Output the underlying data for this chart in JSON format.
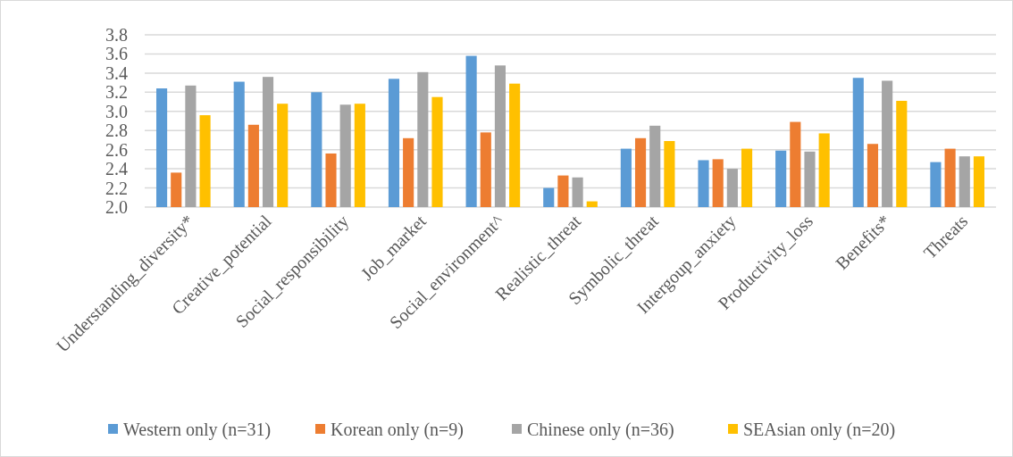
{
  "chart_data": {
    "type": "bar",
    "categories": [
      "Understanding_diversity*",
      "Creative_potential",
      "Social_responsibility",
      "Job_market",
      "Social_environment^",
      "Realistic_threat",
      "Symbolic_threat",
      "Intergoup_anxiety",
      "Productivity_loss",
      "Benefits*",
      "Threats"
    ],
    "series": [
      {
        "name": "Western only (n=31)",
        "color": "#5b9bd5",
        "values": [
          3.24,
          3.31,
          3.2,
          3.34,
          3.58,
          2.2,
          2.61,
          2.49,
          2.59,
          3.35,
          2.47
        ]
      },
      {
        "name": "Korean only (n=9)",
        "color": "#ed7d31",
        "values": [
          2.36,
          2.86,
          2.56,
          2.72,
          2.78,
          2.33,
          2.72,
          2.5,
          2.89,
          2.66,
          2.61
        ]
      },
      {
        "name": "Chinese only (n=36)",
        "color": "#a5a5a5",
        "values": [
          3.27,
          3.36,
          3.07,
          3.41,
          3.48,
          2.31,
          2.85,
          2.4,
          2.58,
          3.32,
          2.53
        ]
      },
      {
        "name": "SEAsian only (n=20)",
        "color": "#ffc000",
        "values": [
          2.96,
          3.08,
          3.08,
          3.15,
          3.29,
          2.06,
          2.69,
          2.61,
          2.77,
          3.11,
          2.53
        ]
      }
    ],
    "ylim": [
      2.0,
      3.8
    ],
    "yticks": [
      {
        "value": 2.0,
        "label": "2.0"
      },
      2.2,
      2.4,
      2.6,
      2.8,
      {
        "value": 3.0,
        "label": "3.0"
      },
      3.2,
      3.4,
      3.6,
      3.8
    ],
    "grid": "y",
    "legend": "bottom"
  }
}
